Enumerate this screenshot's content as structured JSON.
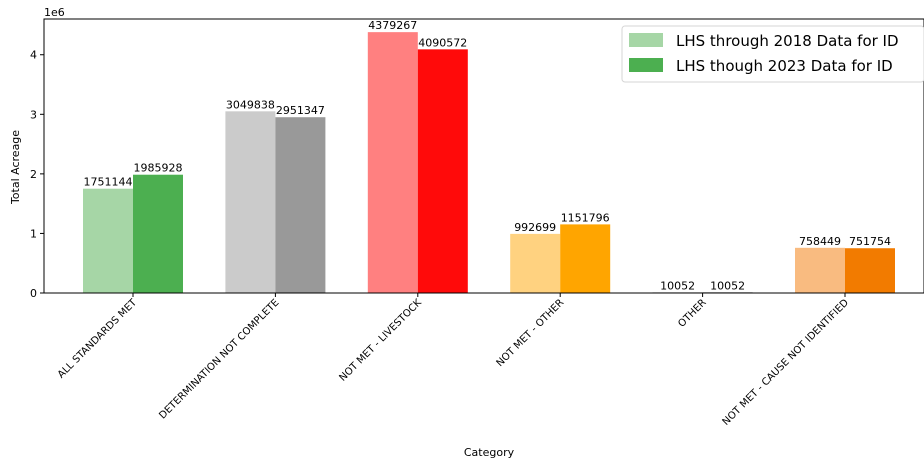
{
  "chart_data": {
    "type": "bar",
    "categories": [
      "ALL STANDARDS MET",
      "DETERMINATION NOT COMPLETE",
      "NOT MET - LIVESTOCK",
      "NOT MET - OTHER",
      "OTHER",
      "NOT MET - CAUSE NOT IDENTIFIED"
    ],
    "series": [
      {
        "name": "LHS through 2018 Data for ID",
        "values": [
          1751144,
          3049838,
          4379267,
          992699,
          10052,
          758449
        ],
        "colors": [
          "#a6d6a6",
          "#cbcbcb",
          "#ff8080",
          "#ffd280",
          "#808080",
          "#f9bb80"
        ]
      },
      {
        "name": "LHS though 2023 Data for ID",
        "values": [
          1985928,
          2951347,
          4090572,
          1151796,
          10052,
          751754
        ],
        "colors": [
          "#4caf50",
          "#999999",
          "#ff0a0a",
          "#ffa500",
          "#000000",
          "#f27b00"
        ]
      }
    ],
    "data_labels": [
      [
        "1751144",
        "3049838",
        "4379267",
        "992699",
        "10052",
        "758449"
      ],
      [
        "1985928",
        "2951347",
        "4090572",
        "1151796",
        "10052",
        "751754"
      ]
    ],
    "xlabel": "Category",
    "ylabel": "Total Acreage",
    "offset_text": "1e6",
    "ylim": [
      0,
      4600000
    ],
    "yticks": [
      0,
      1000000,
      2000000,
      3000000,
      4000000
    ],
    "ytick_labels": [
      "0",
      "1",
      "2",
      "3",
      "4"
    ],
    "legend_placement": "top-right",
    "grid": false
  }
}
